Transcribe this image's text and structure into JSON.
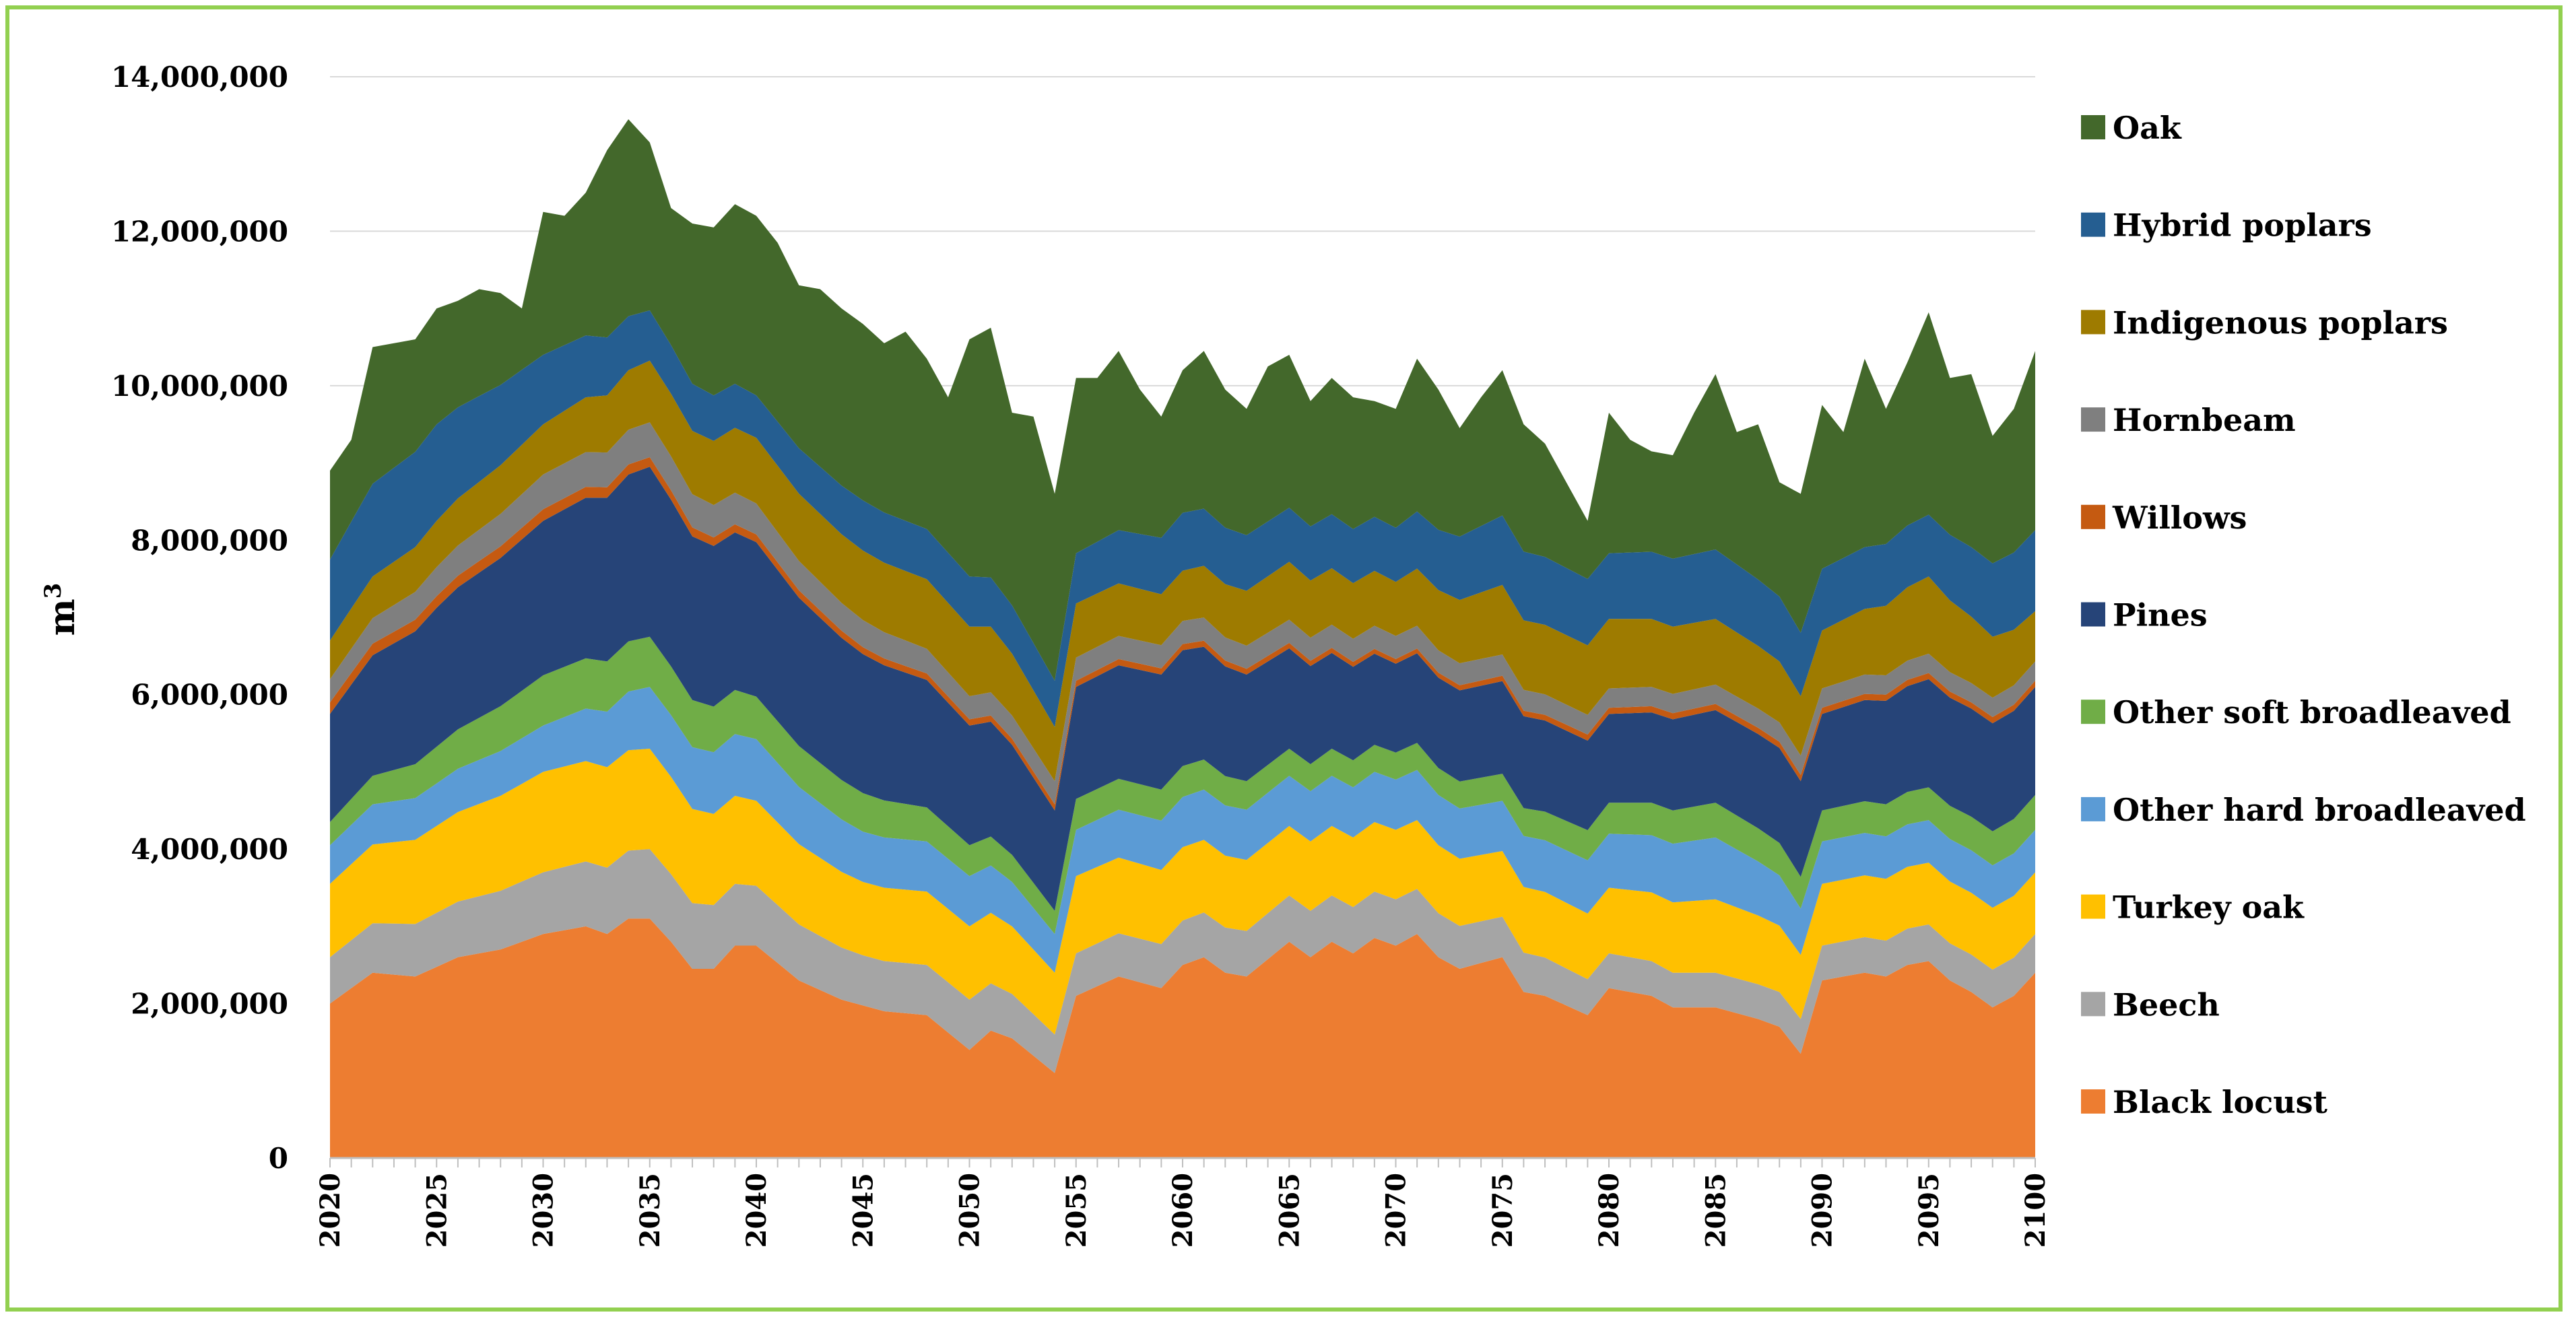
{
  "chart_data": {
    "type": "area",
    "stacked": true,
    "title": "",
    "xlabel": "",
    "ylabel": "m",
    "ylabel_superscript": "3",
    "ylim": [
      0,
      14000000
    ],
    "yticks": [
      0,
      2000000,
      4000000,
      6000000,
      8000000,
      10000000,
      12000000,
      14000000
    ],
    "ytick_labels": [
      "0",
      "2,000,000",
      "4,000,000",
      "6,000,000",
      "8,000,000",
      "10,000,000",
      "12,000,000",
      "14,000,000"
    ],
    "xlim": [
      2020,
      2100
    ],
    "xticks": [
      2020,
      2025,
      2030,
      2035,
      2040,
      2045,
      2050,
      2055,
      2060,
      2065,
      2070,
      2075,
      2080,
      2085,
      2090,
      2095,
      2100
    ],
    "xtick_labels": [
      "2020",
      "2025",
      "2030",
      "2035",
      "2040",
      "2045",
      "2050",
      "2055",
      "2060",
      "2065",
      "2070",
      "2075",
      "2080",
      "2085",
      "2090",
      "2095",
      "2100"
    ],
    "grid": "horizontal",
    "legend_position": "right",
    "total_keyframes": [
      [
        2020,
        8900000
      ],
      [
        2021,
        9300000
      ],
      [
        2022,
        10500000
      ],
      [
        2023,
        10550000
      ],
      [
        2024,
        10600000
      ],
      [
        2025,
        11000000
      ],
      [
        2026,
        11100000
      ],
      [
        2027,
        11250000
      ],
      [
        2028,
        11200000
      ],
      [
        2029,
        11000000
      ],
      [
        2030,
        12250000
      ],
      [
        2031,
        12200000
      ],
      [
        2032,
        12500000
      ],
      [
        2033,
        13050000
      ],
      [
        2034,
        13450000
      ],
      [
        2035,
        13150000
      ],
      [
        2036,
        12300000
      ],
      [
        2037,
        12100000
      ],
      [
        2038,
        12050000
      ],
      [
        2039,
        12350000
      ],
      [
        2040,
        12200000
      ],
      [
        2041,
        11850000
      ],
      [
        2042,
        11300000
      ],
      [
        2043,
        11250000
      ],
      [
        2044,
        11000000
      ],
      [
        2045,
        10800000
      ],
      [
        2046,
        10550000
      ],
      [
        2047,
        10700000
      ],
      [
        2048,
        10350000
      ],
      [
        2049,
        9850000
      ],
      [
        2050,
        10600000
      ],
      [
        2051,
        10750000
      ],
      [
        2052,
        9650000
      ],
      [
        2053,
        9600000
      ],
      [
        2054,
        8600000
      ],
      [
        2055,
        10100000
      ],
      [
        2056,
        10100000
      ],
      [
        2057,
        10450000
      ],
      [
        2058,
        9950000
      ],
      [
        2059,
        9600000
      ],
      [
        2060,
        10200000
      ],
      [
        2061,
        10450000
      ],
      [
        2062,
        9950000
      ],
      [
        2063,
        9700000
      ],
      [
        2064,
        10250000
      ],
      [
        2065,
        10400000
      ],
      [
        2066,
        9800000
      ],
      [
        2067,
        10100000
      ],
      [
        2068,
        9850000
      ],
      [
        2069,
        9800000
      ],
      [
        2070,
        9700000
      ],
      [
        2071,
        10350000
      ],
      [
        2072,
        9950000
      ],
      [
        2073,
        9450000
      ],
      [
        2074,
        9850000
      ],
      [
        2075,
        10200000
      ],
      [
        2076,
        9500000
      ],
      [
        2077,
        9250000
      ],
      [
        2078,
        8750000
      ],
      [
        2079,
        8250000
      ],
      [
        2080,
        9650000
      ],
      [
        2081,
        9300000
      ],
      [
        2082,
        9150000
      ],
      [
        2083,
        9100000
      ],
      [
        2084,
        9650000
      ],
      [
        2085,
        10150000
      ],
      [
        2086,
        9400000
      ],
      [
        2087,
        9500000
      ],
      [
        2088,
        8750000
      ],
      [
        2089,
        8600000
      ],
      [
        2090,
        9750000
      ],
      [
        2091,
        9400000
      ],
      [
        2092,
        10350000
      ],
      [
        2093,
        9700000
      ],
      [
        2094,
        10300000
      ],
      [
        2095,
        10950000
      ],
      [
        2096,
        10100000
      ],
      [
        2097,
        10150000
      ],
      [
        2098,
        9350000
      ],
      [
        2099,
        9700000
      ],
      [
        2100,
        10450000
      ]
    ],
    "series": [
      {
        "name": "Black locust",
        "color": "#ed7d31",
        "keyframes": [
          [
            2020,
            2000000
          ],
          [
            2022,
            2400000
          ],
          [
            2024,
            2350000
          ],
          [
            2026,
            2600000
          ],
          [
            2028,
            2700000
          ],
          [
            2030,
            2900000
          ],
          [
            2032,
            3000000
          ],
          [
            2033,
            2900000
          ],
          [
            2034,
            3100000
          ],
          [
            2035,
            3100000
          ],
          [
            2036,
            2800000
          ],
          [
            2037,
            2450000
          ],
          [
            2038,
            2450000
          ],
          [
            2039,
            2750000
          ],
          [
            2040,
            2750000
          ],
          [
            2042,
            2300000
          ],
          [
            2044,
            2050000
          ],
          [
            2046,
            1900000
          ],
          [
            2048,
            1850000
          ],
          [
            2050,
            1400000
          ],
          [
            2051,
            1650000
          ],
          [
            2052,
            1550000
          ],
          [
            2054,
            1100000
          ],
          [
            2055,
            2100000
          ],
          [
            2057,
            2350000
          ],
          [
            2059,
            2200000
          ],
          [
            2060,
            2500000
          ],
          [
            2061,
            2600000
          ],
          [
            2062,
            2400000
          ],
          [
            2063,
            2350000
          ],
          [
            2065,
            2800000
          ],
          [
            2066,
            2600000
          ],
          [
            2067,
            2800000
          ],
          [
            2068,
            2650000
          ],
          [
            2069,
            2850000
          ],
          [
            2070,
            2750000
          ],
          [
            2071,
            2900000
          ],
          [
            2072,
            2600000
          ],
          [
            2073,
            2450000
          ],
          [
            2075,
            2600000
          ],
          [
            2076,
            2150000
          ],
          [
            2077,
            2100000
          ],
          [
            2079,
            1850000
          ],
          [
            2080,
            2200000
          ],
          [
            2082,
            2100000
          ],
          [
            2083,
            1950000
          ],
          [
            2085,
            1950000
          ],
          [
            2087,
            1800000
          ],
          [
            2088,
            1700000
          ],
          [
            2089,
            1350000
          ],
          [
            2090,
            2300000
          ],
          [
            2092,
            2400000
          ],
          [
            2093,
            2350000
          ],
          [
            2094,
            2500000
          ],
          [
            2095,
            2550000
          ],
          [
            2096,
            2300000
          ],
          [
            2097,
            2150000
          ],
          [
            2098,
            1950000
          ],
          [
            2099,
            2100000
          ],
          [
            2100,
            2400000
          ]
        ]
      },
      {
        "name": "Beech",
        "color": "#a5a5a5",
        "keyframes": [
          [
            2020,
            600000
          ],
          [
            2030,
            800000
          ],
          [
            2035,
            900000
          ],
          [
            2045,
            650000
          ],
          [
            2050,
            650000
          ],
          [
            2054,
            500000
          ],
          [
            2055,
            550000
          ],
          [
            2065,
            600000
          ],
          [
            2070,
            600000
          ],
          [
            2080,
            450000
          ],
          [
            2090,
            450000
          ],
          [
            2100,
            500000
          ]
        ]
      },
      {
        "name": "Turkey oak",
        "color": "#ffc000",
        "keyframes": [
          [
            2020,
            950000
          ],
          [
            2030,
            1300000
          ],
          [
            2035,
            1300000
          ],
          [
            2040,
            1100000
          ],
          [
            2045,
            950000
          ],
          [
            2050,
            950000
          ],
          [
            2054,
            800000
          ],
          [
            2055,
            1000000
          ],
          [
            2060,
            950000
          ],
          [
            2065,
            900000
          ],
          [
            2070,
            900000
          ],
          [
            2075,
            850000
          ],
          [
            2080,
            850000
          ],
          [
            2085,
            950000
          ],
          [
            2090,
            800000
          ],
          [
            2100,
            800000
          ]
        ]
      },
      {
        "name": "Other hard broadleaved",
        "color": "#5b9bd5",
        "keyframes": [
          [
            2020,
            500000
          ],
          [
            2030,
            600000
          ],
          [
            2035,
            800000
          ],
          [
            2040,
            800000
          ],
          [
            2045,
            650000
          ],
          [
            2050,
            650000
          ],
          [
            2054,
            500000
          ],
          [
            2055,
            600000
          ],
          [
            2060,
            650000
          ],
          [
            2065,
            650000
          ],
          [
            2070,
            650000
          ],
          [
            2075,
            650000
          ],
          [
            2080,
            700000
          ],
          [
            2085,
            800000
          ],
          [
            2090,
            550000
          ],
          [
            2100,
            550000
          ]
        ]
      },
      {
        "name": "Other soft broadleaved",
        "color": "#70ad47",
        "keyframes": [
          [
            2020,
            300000
          ],
          [
            2030,
            650000
          ],
          [
            2035,
            650000
          ],
          [
            2040,
            550000
          ],
          [
            2045,
            500000
          ],
          [
            2050,
            400000
          ],
          [
            2054,
            300000
          ],
          [
            2055,
            400000
          ],
          [
            2060,
            400000
          ],
          [
            2065,
            350000
          ],
          [
            2070,
            350000
          ],
          [
            2075,
            350000
          ],
          [
            2080,
            400000
          ],
          [
            2085,
            450000
          ],
          [
            2090,
            400000
          ],
          [
            2100,
            450000
          ]
        ]
      },
      {
        "name": "Pines",
        "color": "#264478",
        "keyframes": [
          [
            2020,
            1400000
          ],
          [
            2025,
            1800000
          ],
          [
            2030,
            2000000
          ],
          [
            2035,
            2200000
          ],
          [
            2040,
            2000000
          ],
          [
            2045,
            1800000
          ],
          [
            2050,
            1550000
          ],
          [
            2054,
            1300000
          ],
          [
            2055,
            1450000
          ],
          [
            2060,
            1500000
          ],
          [
            2065,
            1300000
          ],
          [
            2070,
            1150000
          ],
          [
            2075,
            1200000
          ],
          [
            2080,
            1150000
          ],
          [
            2085,
            1200000
          ],
          [
            2090,
            1250000
          ],
          [
            2095,
            1400000
          ],
          [
            2100,
            1400000
          ]
        ]
      },
      {
        "name": "Willows",
        "color": "#c55a11",
        "keyframes": [
          [
            2020,
            150000
          ],
          [
            2030,
            150000
          ],
          [
            2040,
            100000
          ],
          [
            2050,
            80000
          ],
          [
            2060,
            80000
          ],
          [
            2070,
            60000
          ],
          [
            2080,
            80000
          ],
          [
            2090,
            80000
          ],
          [
            2100,
            80000
          ]
        ]
      },
      {
        "name": "Hornbeam",
        "color": "#7f7f7f",
        "keyframes": [
          [
            2020,
            300000
          ],
          [
            2030,
            450000
          ],
          [
            2035,
            450000
          ],
          [
            2040,
            400000
          ],
          [
            2045,
            350000
          ],
          [
            2050,
            300000
          ],
          [
            2055,
            300000
          ],
          [
            2060,
            300000
          ],
          [
            2065,
            300000
          ],
          [
            2070,
            300000
          ],
          [
            2080,
            250000
          ],
          [
            2090,
            250000
          ],
          [
            2100,
            250000
          ]
        ]
      },
      {
        "name": "Indigenous poplars",
        "color": "#9e7b00",
        "keyframes": [
          [
            2020,
            500000
          ],
          [
            2025,
            600000
          ],
          [
            2030,
            650000
          ],
          [
            2035,
            800000
          ],
          [
            2040,
            850000
          ],
          [
            2045,
            900000
          ],
          [
            2050,
            900000
          ],
          [
            2054,
            700000
          ],
          [
            2055,
            700000
          ],
          [
            2060,
            650000
          ],
          [
            2065,
            750000
          ],
          [
            2070,
            700000
          ],
          [
            2075,
            900000
          ],
          [
            2080,
            900000
          ],
          [
            2085,
            850000
          ],
          [
            2090,
            750000
          ],
          [
            2095,
            1000000
          ],
          [
            2100,
            650000
          ]
        ]
      },
      {
        "name": "Hybrid poplars",
        "color": "#255e91",
        "keyframes": [
          [
            2020,
            1050000
          ],
          [
            2022,
            1200000
          ],
          [
            2025,
            1250000
          ],
          [
            2030,
            900000
          ],
          [
            2035,
            650000
          ],
          [
            2040,
            550000
          ],
          [
            2045,
            650000
          ],
          [
            2050,
            650000
          ],
          [
            2054,
            600000
          ],
          [
            2055,
            650000
          ],
          [
            2060,
            750000
          ],
          [
            2065,
            700000
          ],
          [
            2070,
            700000
          ],
          [
            2075,
            900000
          ],
          [
            2080,
            850000
          ],
          [
            2085,
            900000
          ],
          [
            2090,
            800000
          ],
          [
            2095,
            800000
          ],
          [
            2100,
            1050000
          ]
        ]
      },
      {
        "name": "Oak",
        "color": "#43682b",
        "remainder_of_total": true
      }
    ],
    "legend_order": [
      "Oak",
      "Hybrid poplars",
      "Indigenous poplars",
      "Hornbeam",
      "Willows",
      "Pines",
      "Other soft broadleaved",
      "Other hard broadleaved",
      "Turkey oak",
      "Beech",
      "Black locust"
    ]
  }
}
